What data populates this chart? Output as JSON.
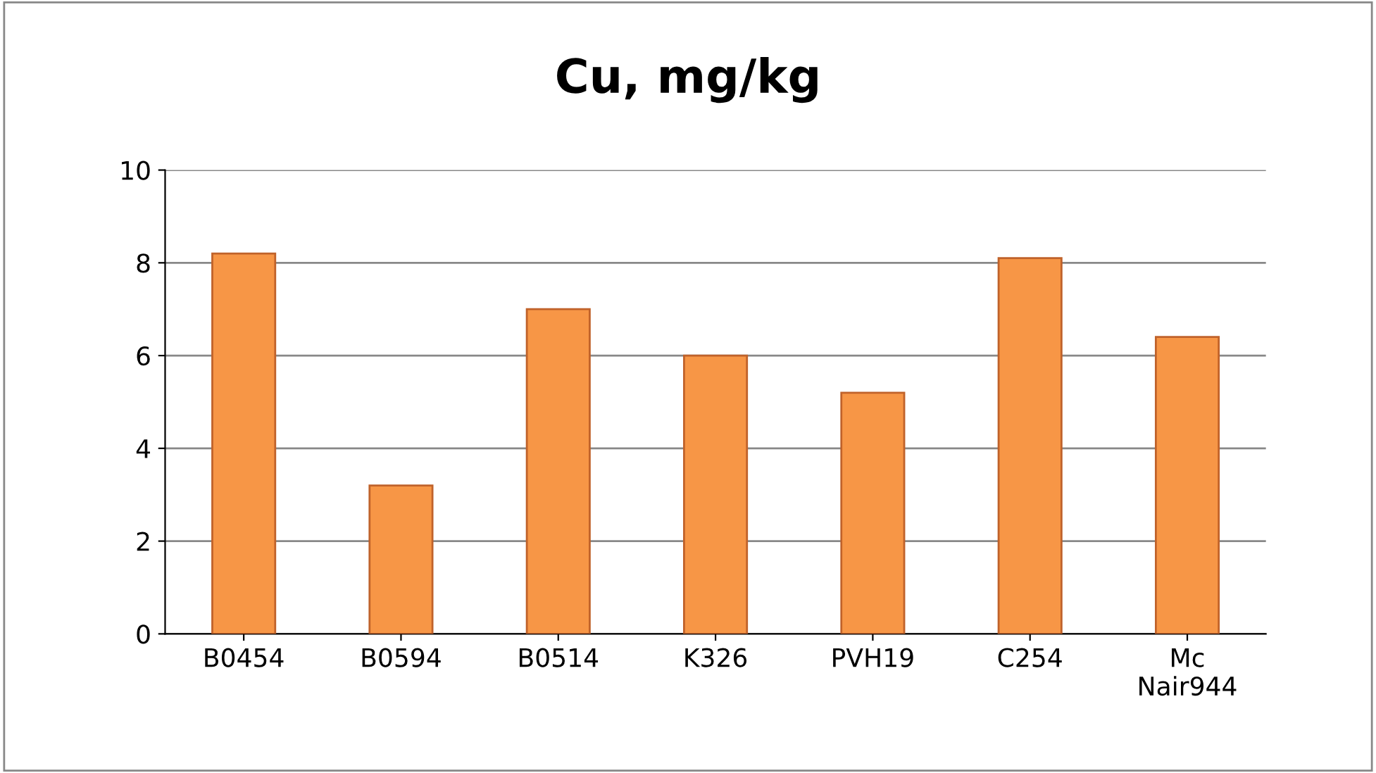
{
  "chart_data": {
    "type": "bar",
    "title": "Cu, mg/kg",
    "categories": [
      "B0454",
      "B0594",
      "B0514",
      "K326",
      "PVH19",
      "C254",
      "Mc\nNair944"
    ],
    "values": [
      8.2,
      3.2,
      7.0,
      6.0,
      5.2,
      8.1,
      6.4
    ],
    "color": "#f79646",
    "ylim": [
      0,
      10
    ],
    "yticks": [
      0,
      2,
      4,
      6,
      8,
      10
    ],
    "grid": "y"
  }
}
